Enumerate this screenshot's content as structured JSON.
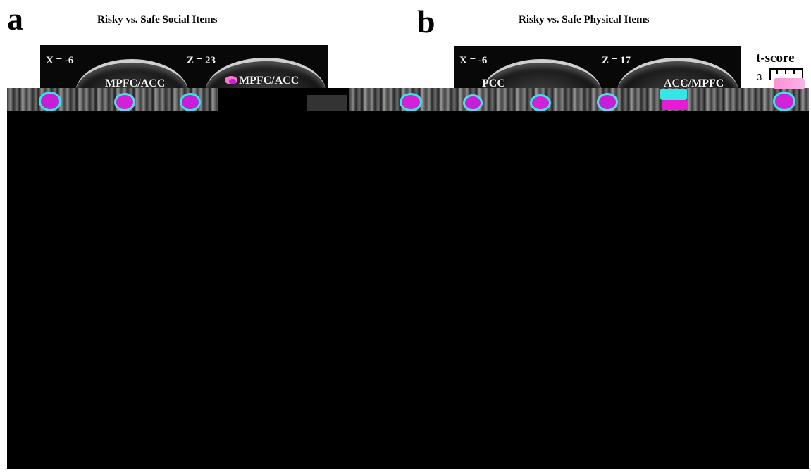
{
  "panel_a": {
    "letter": "a",
    "title": "Risky vs. Safe Social Items",
    "coord_left": "X = -6",
    "coord_right": "Z = 23",
    "region_left": "MPFC/ACC",
    "region_right": "MPFC/ACC"
  },
  "panel_b": {
    "letter": "b",
    "title": "Risky vs. Safe Physical Items",
    "coord_left": "X = -6",
    "coord_right": "Z = 17",
    "region_left": "PCC",
    "region_right": "ACC/MPFC"
  },
  "legend": {
    "title": "t-score",
    "min_label": "3"
  },
  "colors": {
    "activation_magenta": "#c81ed8",
    "activation_pink": "#ff74cf",
    "activation_cyan": "#34e6e6",
    "scan_background": "#080808"
  }
}
